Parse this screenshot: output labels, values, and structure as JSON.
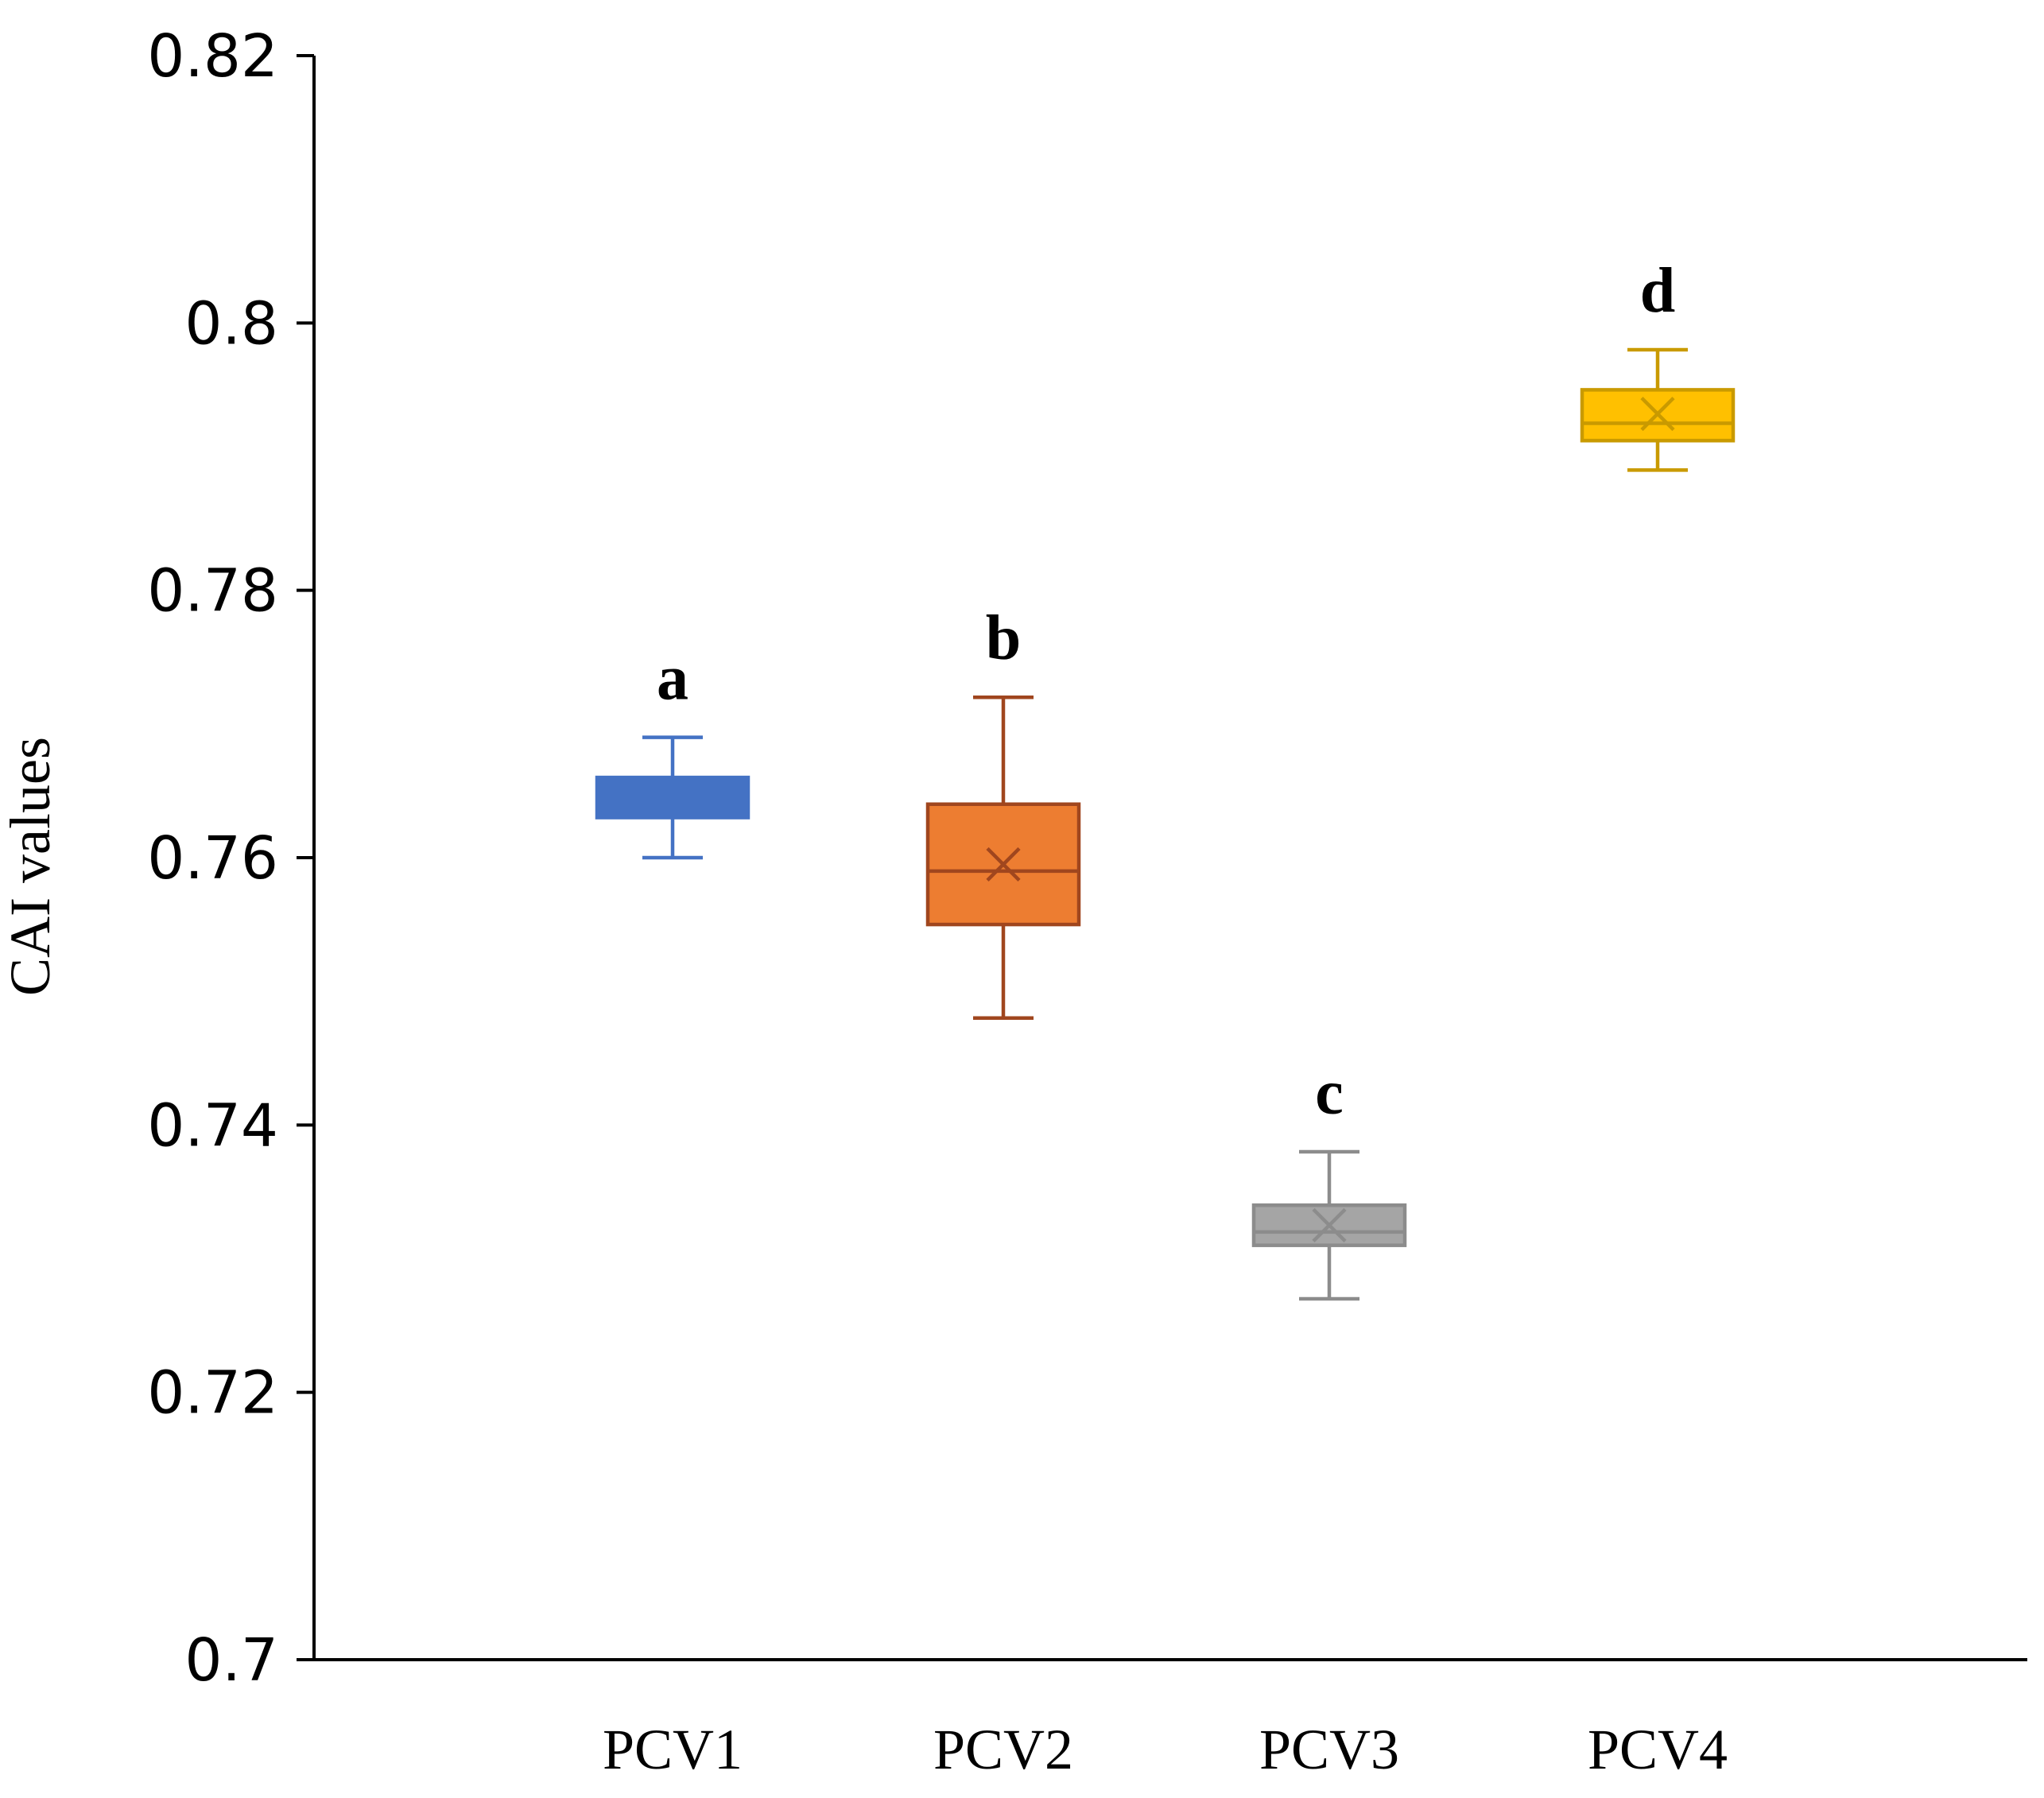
{
  "chart_data": {
    "type": "box",
    "title": "",
    "xlabel": "",
    "ylabel": "CAI values",
    "ylim": [
      0.7,
      0.82
    ],
    "yticks": [
      {
        "value": 0.7,
        "label": "0.7"
      },
      {
        "value": 0.72,
        "label": "0.72"
      },
      {
        "value": 0.74,
        "label": "0.74"
      },
      {
        "value": 0.76,
        "label": "0.76"
      },
      {
        "value": 0.78,
        "label": "0.78"
      },
      {
        "value": 0.8,
        "label": "0.8"
      },
      {
        "value": 0.82,
        "label": "0.82"
      }
    ],
    "grid": false,
    "categories": [
      "PCV1",
      "PCV2",
      "PCV3",
      "PCV4"
    ],
    "series": [
      {
        "name": "PCV1",
        "color": "#4472C4",
        "fill": "#4472C4",
        "min": 0.76,
        "q1": 0.763,
        "median": 0.764,
        "q3": 0.766,
        "max": 0.769,
        "mean": 0.7645,
        "letter": "a"
      },
      {
        "name": "PCV2",
        "color": "#A0461E",
        "fill": "#ED7D31",
        "min": 0.748,
        "q1": 0.755,
        "median": 0.759,
        "q3": 0.764,
        "max": 0.772,
        "mean": 0.7595,
        "letter": "b"
      },
      {
        "name": "PCV3",
        "color": "#8C8C8C",
        "fill": "#A5A5A5",
        "min": 0.727,
        "q1": 0.731,
        "median": 0.732,
        "q3": 0.734,
        "max": 0.738,
        "mean": 0.7325,
        "letter": "c"
      },
      {
        "name": "PCV4",
        "color": "#C99A00",
        "fill": "#FFC000",
        "min": 0.789,
        "q1": 0.7912,
        "median": 0.7925,
        "q3": 0.795,
        "max": 0.798,
        "mean": 0.7932,
        "letter": "d"
      }
    ]
  }
}
